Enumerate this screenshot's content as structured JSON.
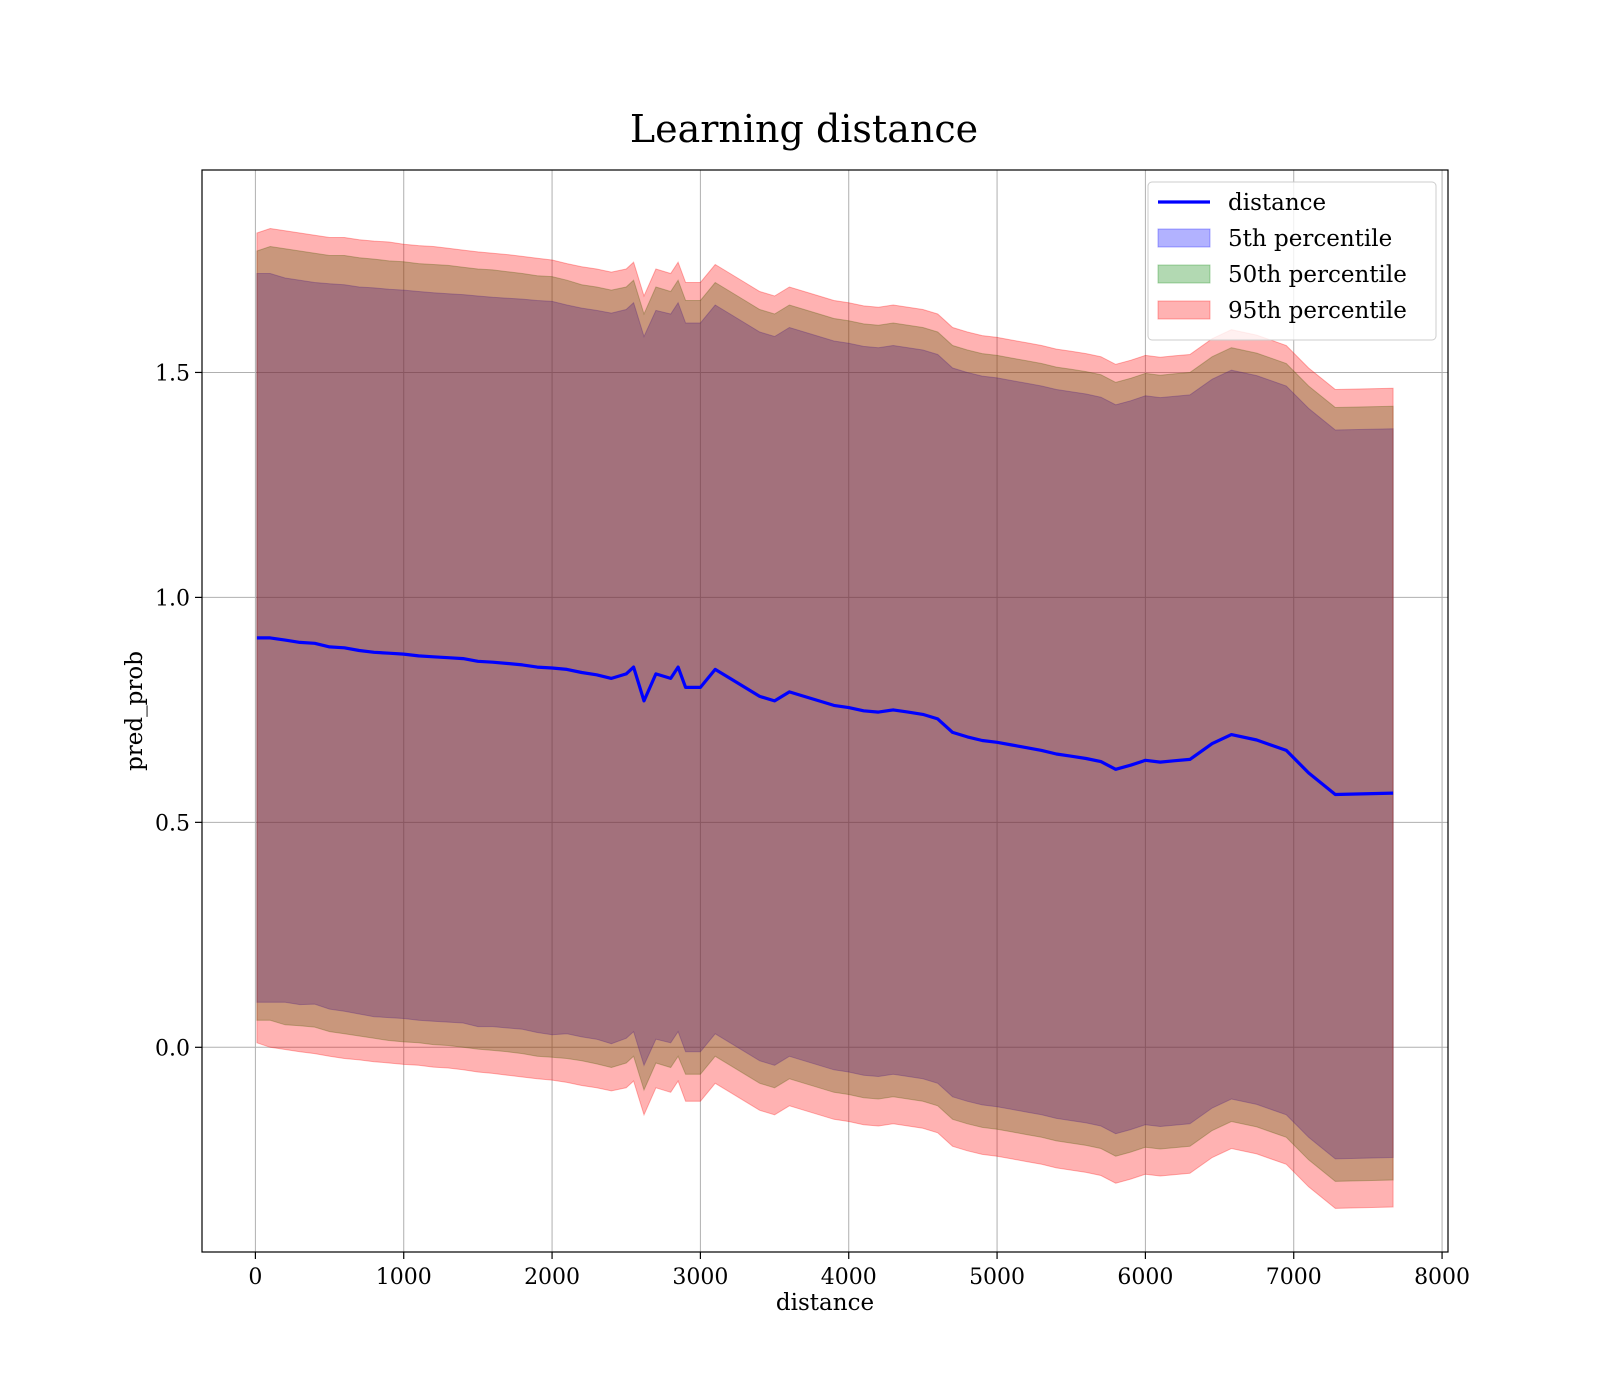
{
  "chart_data": {
    "type": "line",
    "title": "Learning distance",
    "xlabel": "distance",
    "ylabel": "pred_prob",
    "xlim": [
      -360,
      8040
    ],
    "ylim": [
      -0.455,
      1.95
    ],
    "xticks": [
      0,
      1000,
      2000,
      3000,
      4000,
      5000,
      6000,
      7000,
      8000
    ],
    "xtick_labels": [
      "0",
      "1000",
      "2000",
      "3000",
      "4000",
      "5000",
      "6000",
      "7000",
      "8000"
    ],
    "yticks": [
      0.0,
      0.5,
      1.0,
      1.5
    ],
    "ytick_labels": [
      "0.0",
      "0.5",
      "1.0",
      "1.5"
    ],
    "grid": true,
    "legend_position": "top-right",
    "x": [
      10,
      100,
      200,
      300,
      400,
      500,
      600,
      700,
      800,
      900,
      1000,
      1100,
      1200,
      1300,
      1400,
      1500,
      1600,
      1700,
      1800,
      1900,
      2000,
      2100,
      2200,
      2300,
      2400,
      2500,
      2550,
      2620,
      2700,
      2800,
      2850,
      2900,
      3000,
      3100,
      3200,
      3300,
      3400,
      3500,
      3600,
      3700,
      3800,
      3900,
      4000,
      4100,
      4200,
      4300,
      4400,
      4500,
      4600,
      4700,
      4800,
      4900,
      5000,
      5100,
      5200,
      5300,
      5400,
      5500,
      5600,
      5700,
      5800,
      5900,
      6000,
      6100,
      6200,
      6300,
      6450,
      6580,
      6750,
      6950,
      7100,
      7280,
      7670
    ],
    "series": [
      {
        "name": "distance",
        "type": "line",
        "color": "#0000ff",
        "values": [
          0.91,
          0.91,
          0.905,
          0.9,
          0.898,
          0.89,
          0.888,
          0.882,
          0.878,
          0.876,
          0.874,
          0.87,
          0.868,
          0.866,
          0.864,
          0.858,
          0.856,
          0.853,
          0.85,
          0.845,
          0.843,
          0.84,
          0.833,
          0.828,
          0.82,
          0.83,
          0.845,
          0.77,
          0.83,
          0.82,
          0.845,
          0.8,
          0.8,
          0.84,
          0.82,
          0.8,
          0.78,
          0.77,
          0.79,
          0.78,
          0.77,
          0.76,
          0.755,
          0.748,
          0.745,
          0.75,
          0.745,
          0.74,
          0.73,
          0.7,
          0.69,
          0.682,
          0.678,
          0.672,
          0.666,
          0.66,
          0.652,
          0.647,
          0.642,
          0.635,
          0.618,
          0.627,
          0.638,
          0.634,
          0.637,
          0.64,
          0.675,
          0.695,
          0.683,
          0.66,
          0.61,
          0.562,
          0.565
        ]
      },
      {
        "name": "5th percentile",
        "type": "band",
        "color": "#0000ff",
        "upper": [
          1.72,
          1.72,
          1.71,
          1.705,
          1.7,
          1.697,
          1.695,
          1.69,
          1.688,
          1.685,
          1.683,
          1.68,
          1.677,
          1.675,
          1.673,
          1.67,
          1.667,
          1.665,
          1.663,
          1.66,
          1.658,
          1.65,
          1.643,
          1.638,
          1.632,
          1.64,
          1.655,
          1.58,
          1.638,
          1.63,
          1.655,
          1.61,
          1.61,
          1.65,
          1.63,
          1.61,
          1.59,
          1.58,
          1.6,
          1.59,
          1.58,
          1.57,
          1.565,
          1.558,
          1.555,
          1.56,
          1.555,
          1.55,
          1.54,
          1.51,
          1.5,
          1.492,
          1.488,
          1.482,
          1.476,
          1.47,
          1.462,
          1.457,
          1.452,
          1.445,
          1.428,
          1.437,
          1.448,
          1.444,
          1.447,
          1.45,
          1.485,
          1.505,
          1.493,
          1.47,
          1.42,
          1.372,
          1.375
        ],
        "lower": [
          0.1,
          0.1,
          0.1,
          0.095,
          0.096,
          0.085,
          0.08,
          0.074,
          0.068,
          0.066,
          0.064,
          0.06,
          0.058,
          0.056,
          0.054,
          0.046,
          0.046,
          0.043,
          0.04,
          0.033,
          0.028,
          0.03,
          0.023,
          0.018,
          0.008,
          0.02,
          0.035,
          -0.04,
          0.018,
          0.01,
          0.035,
          -0.01,
          -0.01,
          0.03,
          0.01,
          -0.01,
          -0.03,
          -0.04,
          -0.02,
          -0.03,
          -0.04,
          -0.05,
          -0.055,
          -0.062,
          -0.065,
          -0.06,
          -0.065,
          -0.07,
          -0.08,
          -0.11,
          -0.12,
          -0.128,
          -0.132,
          -0.138,
          -0.144,
          -0.15,
          -0.158,
          -0.163,
          -0.168,
          -0.175,
          -0.192,
          -0.183,
          -0.172,
          -0.176,
          -0.173,
          -0.17,
          -0.135,
          -0.115,
          -0.127,
          -0.15,
          -0.2,
          -0.248,
          -0.245
        ]
      },
      {
        "name": "50th percentile",
        "type": "band",
        "color": "#008000",
        "upper": [
          1.77,
          1.78,
          1.775,
          1.77,
          1.765,
          1.76,
          1.76,
          1.755,
          1.752,
          1.748,
          1.746,
          1.742,
          1.74,
          1.738,
          1.734,
          1.73,
          1.728,
          1.724,
          1.72,
          1.715,
          1.713,
          1.705,
          1.695,
          1.69,
          1.683,
          1.69,
          1.705,
          1.63,
          1.69,
          1.68,
          1.705,
          1.66,
          1.66,
          1.7,
          1.68,
          1.66,
          1.64,
          1.63,
          1.65,
          1.64,
          1.63,
          1.62,
          1.615,
          1.608,
          1.605,
          1.61,
          1.605,
          1.6,
          1.59,
          1.56,
          1.55,
          1.542,
          1.538,
          1.532,
          1.526,
          1.52,
          1.512,
          1.507,
          1.502,
          1.495,
          1.478,
          1.487,
          1.498,
          1.494,
          1.497,
          1.5,
          1.535,
          1.555,
          1.543,
          1.52,
          1.47,
          1.422,
          1.425
        ],
        "lower": [
          0.06,
          0.06,
          0.05,
          0.048,
          0.045,
          0.035,
          0.03,
          0.025,
          0.02,
          0.015,
          0.012,
          0.01,
          0.006,
          0.004,
          0.0,
          -0.004,
          -0.007,
          -0.01,
          -0.014,
          -0.02,
          -0.022,
          -0.025,
          -0.03,
          -0.037,
          -0.045,
          -0.035,
          -0.02,
          -0.095,
          -0.035,
          -0.045,
          -0.02,
          -0.06,
          -0.06,
          -0.02,
          -0.04,
          -0.06,
          -0.08,
          -0.09,
          -0.07,
          -0.08,
          -0.09,
          -0.1,
          -0.105,
          -0.112,
          -0.115,
          -0.11,
          -0.115,
          -0.12,
          -0.13,
          -0.16,
          -0.17,
          -0.178,
          -0.182,
          -0.188,
          -0.194,
          -0.2,
          -0.208,
          -0.213,
          -0.218,
          -0.225,
          -0.242,
          -0.233,
          -0.222,
          -0.226,
          -0.223,
          -0.22,
          -0.185,
          -0.165,
          -0.177,
          -0.2,
          -0.25,
          -0.298,
          -0.295
        ]
      },
      {
        "name": "95th percentile",
        "type": "band",
        "color": "#ff0000",
        "upper": [
          1.81,
          1.82,
          1.815,
          1.81,
          1.805,
          1.8,
          1.8,
          1.795,
          1.792,
          1.79,
          1.785,
          1.782,
          1.78,
          1.776,
          1.772,
          1.768,
          1.765,
          1.762,
          1.758,
          1.754,
          1.75,
          1.742,
          1.735,
          1.73,
          1.723,
          1.73,
          1.745,
          1.67,
          1.73,
          1.72,
          1.745,
          1.7,
          1.7,
          1.74,
          1.72,
          1.7,
          1.68,
          1.67,
          1.69,
          1.68,
          1.67,
          1.66,
          1.655,
          1.648,
          1.645,
          1.65,
          1.645,
          1.64,
          1.63,
          1.6,
          1.59,
          1.582,
          1.578,
          1.572,
          1.566,
          1.56,
          1.552,
          1.547,
          1.542,
          1.535,
          1.518,
          1.527,
          1.538,
          1.534,
          1.537,
          1.54,
          1.575,
          1.595,
          1.583,
          1.56,
          1.51,
          1.462,
          1.465
        ],
        "lower": [
          0.01,
          0.0,
          -0.005,
          -0.01,
          -0.014,
          -0.02,
          -0.025,
          -0.028,
          -0.032,
          -0.035,
          -0.038,
          -0.04,
          -0.044,
          -0.046,
          -0.05,
          -0.055,
          -0.058,
          -0.062,
          -0.066,
          -0.07,
          -0.073,
          -0.078,
          -0.085,
          -0.09,
          -0.097,
          -0.09,
          -0.075,
          -0.15,
          -0.09,
          -0.1,
          -0.075,
          -0.12,
          -0.12,
          -0.08,
          -0.1,
          -0.12,
          -0.14,
          -0.15,
          -0.13,
          -0.14,
          -0.15,
          -0.16,
          -0.165,
          -0.172,
          -0.175,
          -0.17,
          -0.175,
          -0.18,
          -0.19,
          -0.22,
          -0.23,
          -0.238,
          -0.242,
          -0.248,
          -0.254,
          -0.26,
          -0.268,
          -0.273,
          -0.278,
          -0.285,
          -0.302,
          -0.293,
          -0.282,
          -0.286,
          -0.283,
          -0.28,
          -0.245,
          -0.225,
          -0.237,
          -0.26,
          -0.31,
          -0.358,
          -0.355
        ]
      }
    ]
  }
}
